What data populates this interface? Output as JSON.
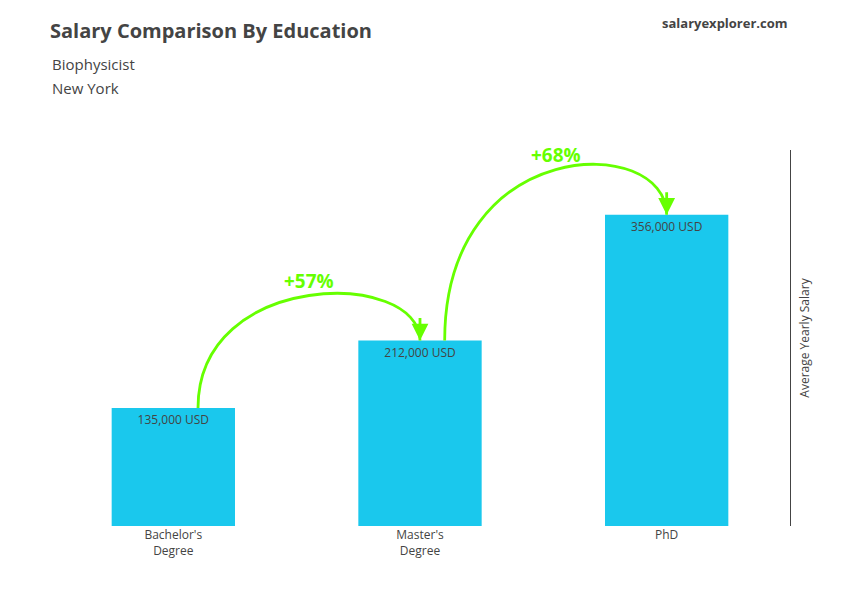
{
  "chart_data": {
    "type": "bar",
    "title": "Salary Comparison By Education",
    "subtitle": [
      "Biophysicist",
      "New York"
    ],
    "ylabel": "Average Yearly Salary",
    "categories": [
      "Bachelor's\nDegree",
      "Master's\nDegree",
      "PhD"
    ],
    "values": [
      135000,
      212000,
      356000
    ],
    "value_labels": [
      "135,000 USD",
      "212,000 USD",
      "356,000 USD"
    ],
    "data_labels": true,
    "color": "#1ac8ed",
    "ylim": [
      0,
      430000
    ],
    "grid": false,
    "tick_labels": "x",
    "annotations": [
      {
        "text": "+57%",
        "from": "Bachelor's\nDegree",
        "to": "Master's\nDegree",
        "color": "#66ff00"
      },
      {
        "text": "+68%",
        "from": "Master's\nDegree",
        "to": "PhD",
        "color": "#66ff00"
      },
      {
        "text": "salaryexplorer.com"
      }
    ]
  }
}
